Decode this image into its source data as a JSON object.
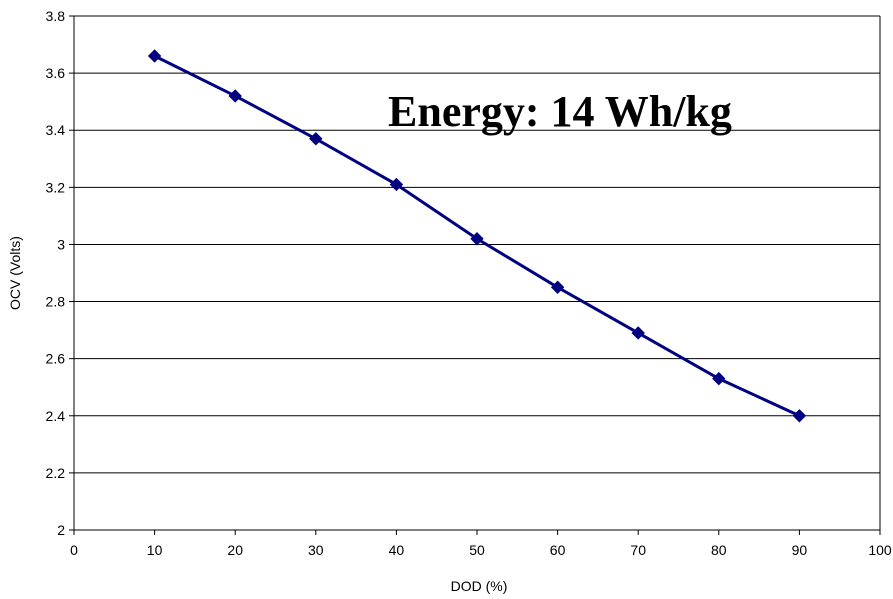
{
  "chart_data": {
    "type": "line",
    "xlabel": "DOD (%)",
    "ylabel": "OCV (Volts)",
    "xlim": [
      0,
      100
    ],
    "ylim": [
      2,
      3.8
    ],
    "x_ticks": [
      0,
      10,
      20,
      30,
      40,
      50,
      60,
      70,
      80,
      90,
      100
    ],
    "y_ticks": [
      2,
      2.2,
      2.4,
      2.6,
      2.8,
      3,
      3.2,
      3.4,
      3.6,
      3.8
    ],
    "x_tick_labels": [
      "0",
      "10",
      "20",
      "30",
      "40",
      "50",
      "60",
      "70",
      "80",
      "90",
      "100"
    ],
    "y_tick_labels": [
      "2",
      "2.2",
      "2.4",
      "2.6",
      "2.8",
      "3",
      "3.2",
      "3.4",
      "3.6",
      "3.8"
    ],
    "grid": "horizontal",
    "annotation": "Energy: 14 Wh/kg",
    "series": [
      {
        "x": [
          10,
          20,
          30,
          40,
          50,
          60,
          70,
          80,
          90
        ],
        "values": [
          3.66,
          3.52,
          3.37,
          3.21,
          3.02,
          2.85,
          2.69,
          2.53,
          2.4
        ],
        "color": "#000080",
        "marker": "diamond"
      }
    ]
  }
}
